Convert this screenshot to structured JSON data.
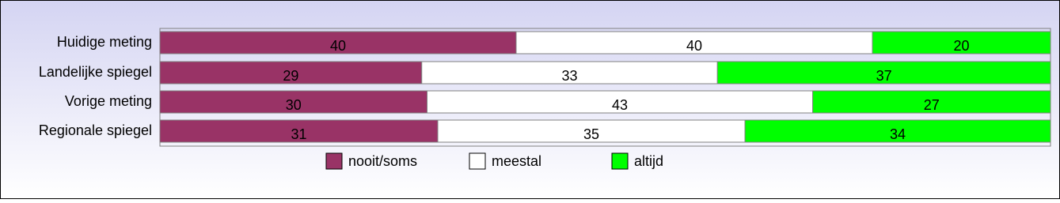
{
  "chart_data": {
    "type": "stacked-bar-horizontal",
    "categories": [
      "Huidige meting",
      "Landelijke spiegel",
      "Vorige meting",
      "Regionale spiegel"
    ],
    "series": [
      {
        "name": "nooit/soms",
        "color": "#993366",
        "values": [
          40,
          29.4,
          30,
          31.2
        ],
        "value_labels": [
          "40",
          "29",
          "30",
          "31"
        ]
      },
      {
        "name": "meestal",
        "color": "#ffffff",
        "values": [
          40,
          33.2,
          43.3,
          34.5
        ],
        "value_labels": [
          "40",
          "33",
          "43",
          "35"
        ]
      },
      {
        "name": "altijd",
        "color": "#00ff00",
        "values": [
          20,
          37.4,
          26.7,
          34.3
        ],
        "value_labels": [
          "20",
          "37",
          "27",
          "34"
        ]
      }
    ],
    "xlim": [
      0,
      100
    ]
  }
}
